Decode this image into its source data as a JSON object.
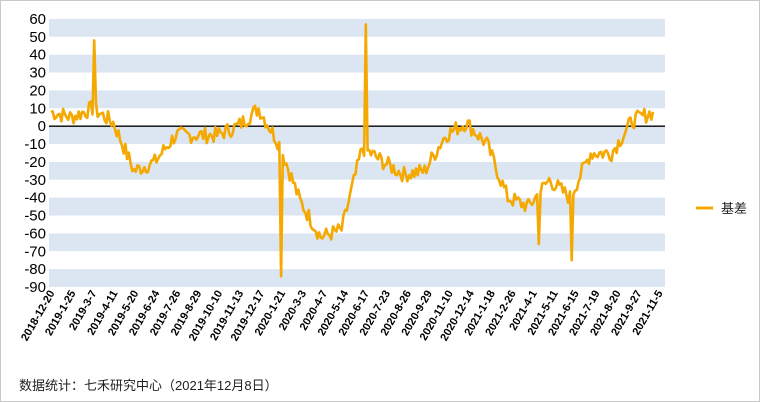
{
  "chart_data": {
    "type": "line",
    "title": "",
    "xlabel": "",
    "ylabel": "",
    "ylim": [
      -90,
      60
    ],
    "yticks": [
      60,
      50,
      40,
      30,
      20,
      10,
      0,
      -10,
      -20,
      -30,
      -40,
      -50,
      -60,
      -70,
      -80,
      -90
    ],
    "grid": "alternating horizontal bands",
    "legend_position": "right",
    "x_tick_labels": [
      "2018-12-20",
      "2019-1-25",
      "2019-3-7",
      "2019-4-11",
      "2019-5-20",
      "2019-6-24",
      "2019-7-26",
      "2019-8-29",
      "2019-10-10",
      "2019-11-13",
      "2019-12-17",
      "2020-1-21",
      "2020-3-3",
      "2020-4-7",
      "2020-5-14",
      "2020-6-17",
      "2020-7-23",
      "2020-8-26",
      "2020-9-29",
      "2020-11-10",
      "2020-12-14",
      "2021-1-18",
      "2021-2-26",
      "2021-4-1",
      "2021-5-11",
      "2021-6-15",
      "2021-7-19",
      "2021-8-20",
      "2021-9-27",
      "2021-11-5"
    ],
    "series": [
      {
        "name": "基差",
        "color": "#f5a800",
        "x": [
          "2018-12-20",
          "2019-1-25",
          "2019-3-7",
          "2019-4-11",
          "2019-5-20",
          "2019-6-24",
          "2019-7-26",
          "2019-8-29",
          "2019-10-10",
          "2019-11-13",
          "2019-12-17",
          "2020-1-21",
          "2020-3-3",
          "2020-4-7",
          "2020-5-14",
          "2020-6-17",
          "2020-7-23",
          "2020-8-26",
          "2020-9-29",
          "2020-11-10",
          "2020-12-14",
          "2021-1-18",
          "2021-2-26",
          "2021-4-1",
          "2021-5-11",
          "2021-6-15",
          "2021-7-19",
          "2021-8-20",
          "2021-9-27",
          "2021-11-5"
        ],
        "values": [
          8,
          5,
          10,
          2,
          -25,
          -20,
          -5,
          -5,
          -5,
          0,
          10,
          -10,
          -42,
          -62,
          -58,
          -12,
          -20,
          -27,
          -25,
          -5,
          2,
          -10,
          -40,
          -45,
          -30,
          -40,
          -15,
          -15,
          3,
          8
        ]
      }
    ]
  },
  "legend": {
    "label": "基差"
  },
  "source": "数据统计：七禾研究中心（2021年12月8日）"
}
